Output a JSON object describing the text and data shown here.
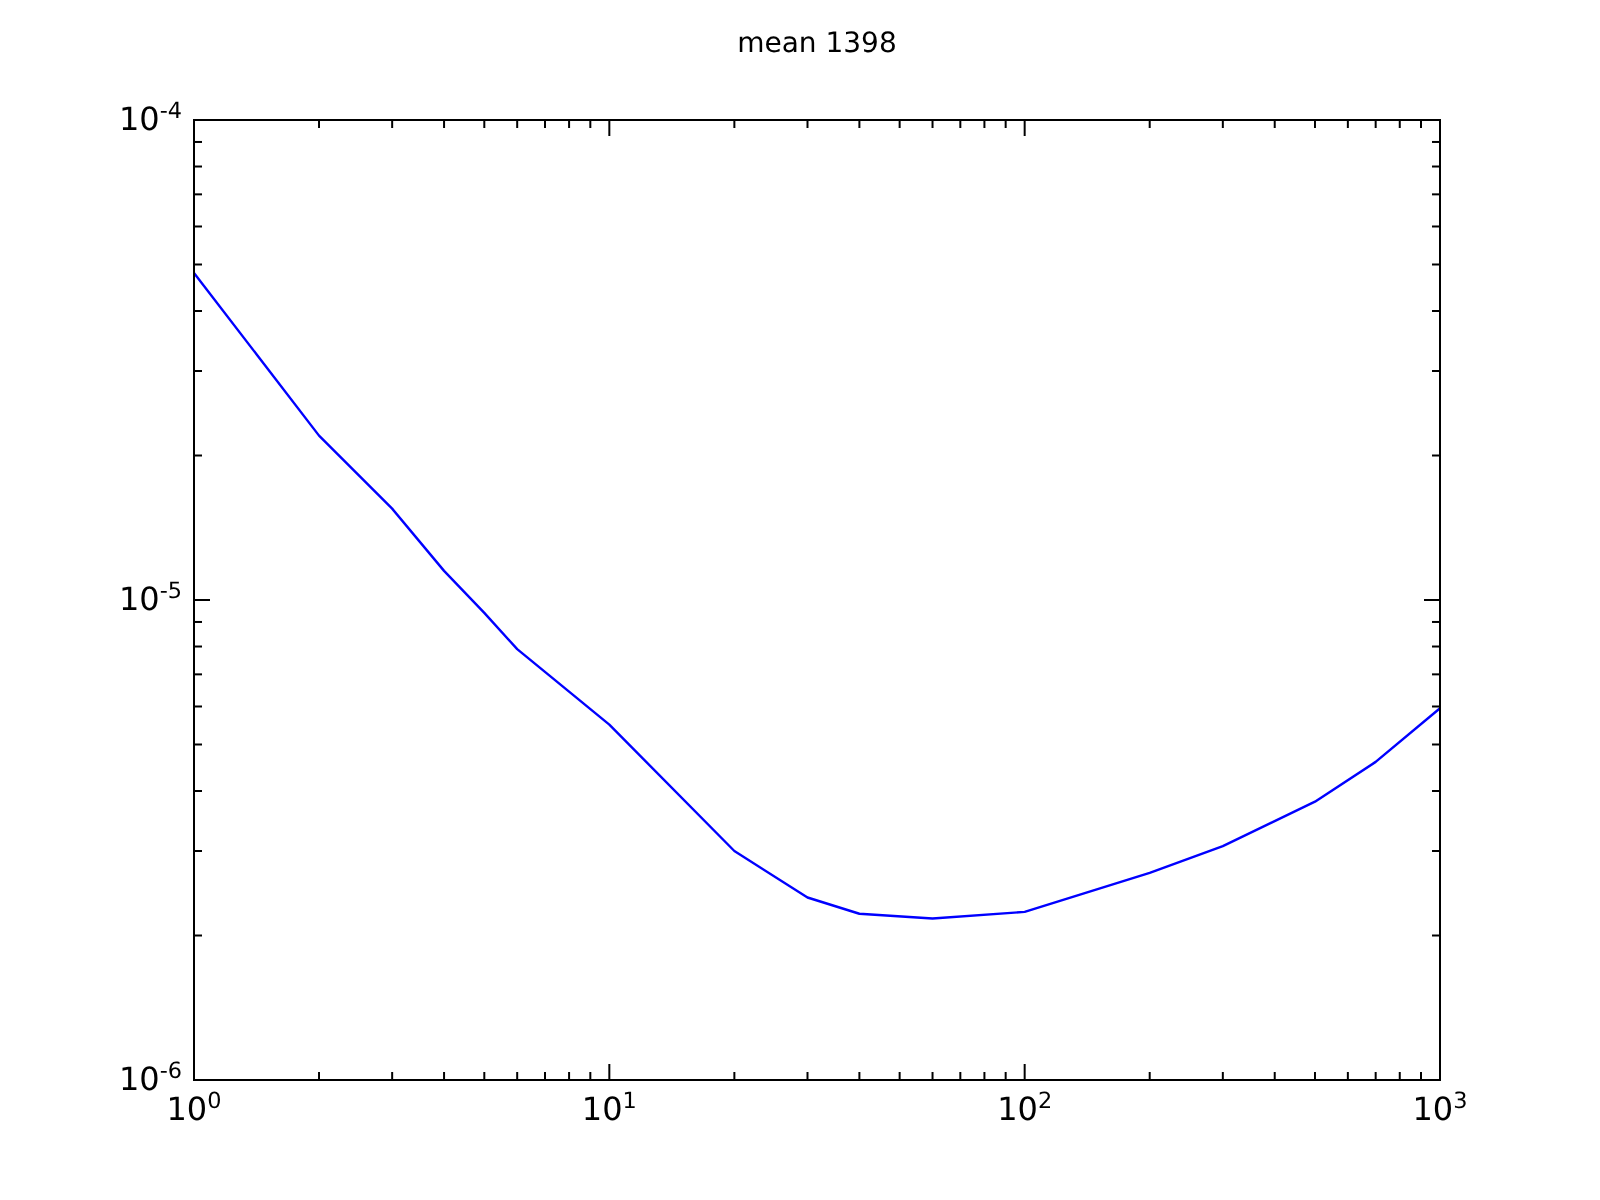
{
  "chart_data": {
    "type": "line",
    "title": "mean 1398",
    "log": "xy",
    "x": [
      1,
      2,
      3,
      4,
      5,
      6,
      10,
      20,
      30,
      40,
      60,
      100,
      200,
      300,
      500,
      700,
      1000
    ],
    "series": [
      {
        "color": "#0000ff",
        "values": [
          4.8e-05,
          2.2e-05,
          1.55e-05,
          1.15e-05,
          9.4e-06,
          7.9e-06,
          5.5e-06,
          3e-06,
          2.4e-06,
          2.22e-06,
          2.17e-06,
          2.24e-06,
          2.7e-06,
          3.07e-06,
          3.8e-06,
          4.6e-06,
          5.95e-06
        ]
      }
    ],
    "xlim": [
      1,
      1000
    ],
    "ylim": [
      1e-06,
      0.0001
    ],
    "xticks": [
      {
        "value": 1,
        "label": "10$^{0}$"
      },
      {
        "value": 10,
        "label": "10$^{1}$"
      },
      {
        "value": 100,
        "label": "10$^{2}$"
      },
      {
        "value": 1000,
        "label": "10$^{3}$"
      }
    ],
    "yticks": [
      {
        "value": 1e-06,
        "label": "10$^{-6}$"
      },
      {
        "value": 1e-05,
        "label": "10$^{-5}$"
      },
      {
        "value": 0.0001,
        "label": "10$^{-4}$"
      }
    ],
    "grid": false
  }
}
